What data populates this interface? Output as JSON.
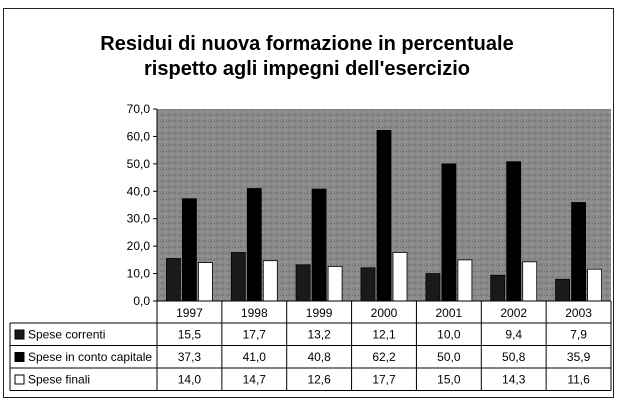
{
  "chart_data": {
    "type": "bar",
    "title": "Residui di nuova formazione in percentuale",
    "subtitle": "rispetto agli impegni dell'esercizio",
    "categories": [
      "1997",
      "1998",
      "1999",
      "2000",
      "2001",
      "2002",
      "2003"
    ],
    "series": [
      {
        "name": "Spese correnti",
        "values": [
          15.5,
          17.7,
          13.2,
          12.1,
          10.0,
          9.4,
          7.9
        ],
        "display": [
          "15,5",
          "17,7",
          "13,2",
          "12,1",
          "10,0",
          "9,4",
          "7,9"
        ],
        "color": "#1a1a1a"
      },
      {
        "name": "Spese in conto capitale",
        "values": [
          37.3,
          41.0,
          40.8,
          62.2,
          50.0,
          50.8,
          35.9
        ],
        "display": [
          "37,3",
          "41,0",
          "40,8",
          "62,2",
          "50,0",
          "50,8",
          "35,9"
        ],
        "color": "#000000"
      },
      {
        "name": "Spese finali",
        "values": [
          14.0,
          14.7,
          12.6,
          17.7,
          15.0,
          14.3,
          11.6
        ],
        "display": [
          "14,0",
          "14,7",
          "12,6",
          "17,7",
          "15,0",
          "14,3",
          "11,6"
        ],
        "color": "#ffffff"
      }
    ],
    "y_ticks": [
      "0,0",
      "10,0",
      "20,0",
      "30,0",
      "40,0",
      "50,0",
      "60,0",
      "70,0"
    ],
    "ylim": [
      0,
      70
    ],
    "legend": "data-table-left",
    "grid": false,
    "background_color": "#8a8a8a"
  }
}
